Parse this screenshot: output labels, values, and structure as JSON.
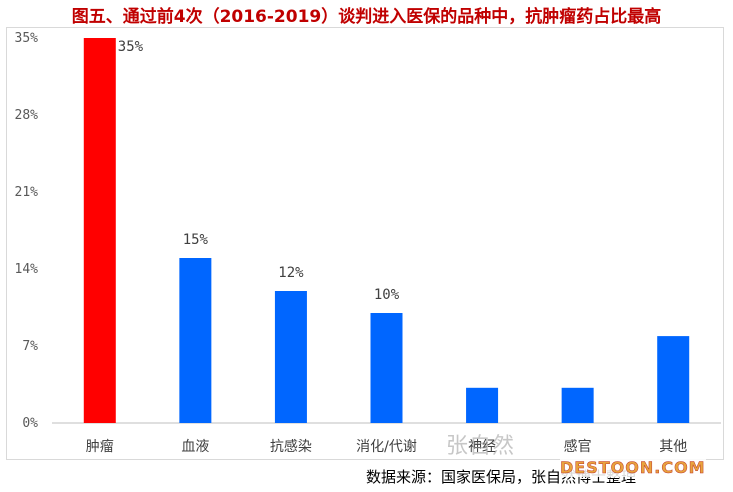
{
  "title": "图五、通过前4次（2016-2019）谈判进入医保的品种中，抗肿瘤药占比最高",
  "source": "数据来源：国家医保局，张自然博士整理",
  "watermark": "张自然",
  "logo": "DESTOON.COM",
  "colors": {
    "highlight": "#ff0000",
    "bar": "#0066ff",
    "axis": "#bfbfbf"
  },
  "chart_data": {
    "type": "bar",
    "title": "图五、通过前4次（2016-2019）谈判进入医保的品种中，抗肿瘤药占比最高",
    "categories": [
      "肿瘤",
      "血液",
      "抗感染",
      "消化/代谢",
      "神经",
      "感官",
      "其他"
    ],
    "values": [
      35,
      15,
      12,
      10,
      3.2,
      3.2,
      7.9
    ],
    "data_labels": [
      "35%",
      "15%",
      "12%",
      "10%",
      "",
      "",
      ""
    ],
    "highlight_index": 0,
    "yticks": [
      "0%",
      "7%",
      "14%",
      "21%",
      "28%",
      "35%"
    ],
    "ytick_values": [
      0,
      7,
      14,
      21,
      28,
      35
    ],
    "ylim": [
      0,
      35
    ],
    "xlabel": "",
    "ylabel": "",
    "grid": false,
    "legend": "none"
  }
}
